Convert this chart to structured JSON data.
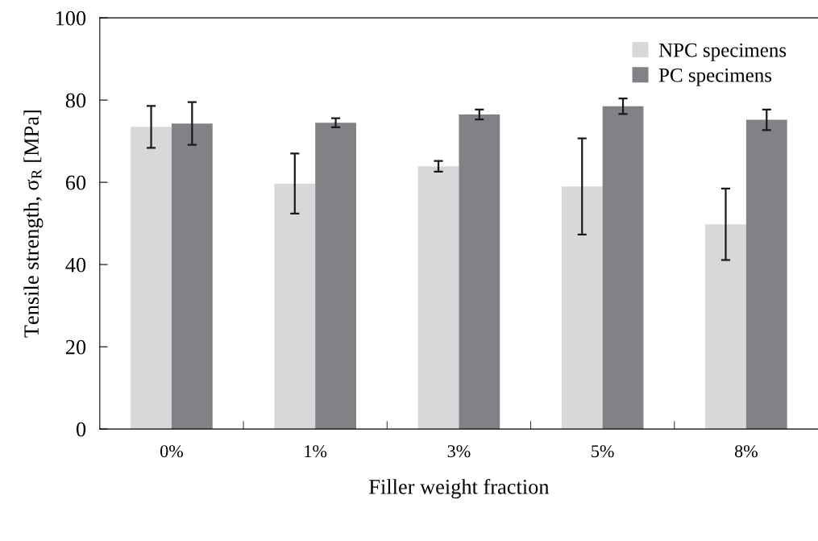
{
  "chart_data": {
    "type": "bar",
    "xlabel": "Filler weight fraction",
    "ylabel": "Tensile strength, σ$_{R}$ [MPa]",
    "categories": [
      "0%",
      "1%",
      "3%",
      "5%",
      "8%"
    ],
    "series": [
      {
        "name": "NPC specimens",
        "color": "#d7d8da",
        "values": [
          73.5,
          59.7,
          63.9,
          59.0,
          49.8
        ],
        "errors": [
          5.1,
          7.3,
          1.3,
          11.7,
          8.7
        ]
      },
      {
        "name": "PC specimens",
        "color": "#818286",
        "values": [
          74.3,
          74.5,
          76.5,
          78.5,
          75.2
        ],
        "errors": [
          5.2,
          1.1,
          1.2,
          1.9,
          2.5
        ]
      }
    ],
    "ylim": [
      0,
      100
    ],
    "yticks": [
      0,
      20,
      40,
      60,
      80,
      100
    ],
    "legend": "top right",
    "grid": false
  }
}
